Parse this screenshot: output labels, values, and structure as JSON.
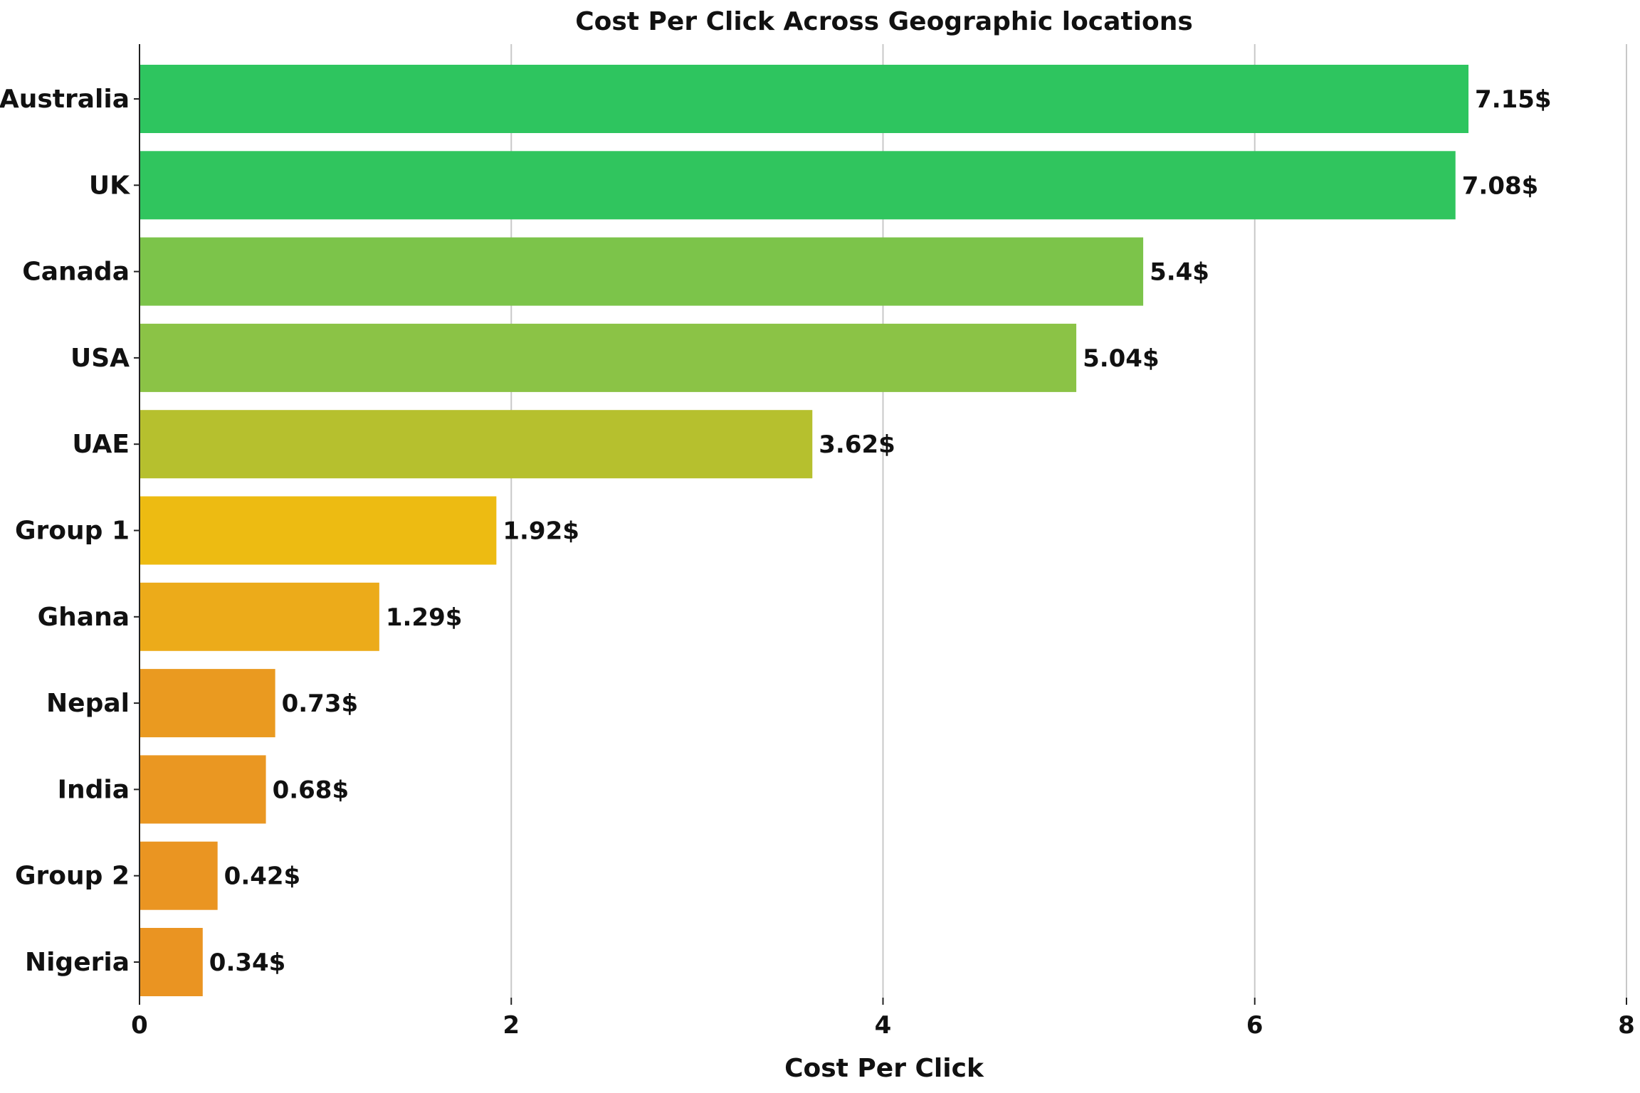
{
  "chart_data": {
    "type": "bar",
    "orientation": "horizontal",
    "title": "Cost Per Click Across Geographic locations",
    "xlabel": "Cost Per Click",
    "ylabel": "",
    "xlim": [
      0,
      8
    ],
    "xticks": [
      0,
      2,
      4,
      6,
      8
    ],
    "xtick_labels": [
      "0",
      "2",
      "4",
      "6",
      "8"
    ],
    "grid": "vertical",
    "value_suffix": "$",
    "categories": [
      "Australia",
      "UK",
      "Canada",
      "USA",
      "UAE",
      "Group 1",
      "Ghana",
      "Nepal",
      "India",
      "Group 2",
      "Nigeria"
    ],
    "values": [
      7.15,
      7.08,
      5.4,
      5.04,
      3.62,
      1.92,
      1.29,
      0.73,
      0.68,
      0.42,
      0.34
    ],
    "data_labels": [
      "7.15$",
      "7.08$",
      "5.4$",
      "5.04$",
      "3.62$",
      "1.92$",
      "1.29$",
      "0.73$",
      "0.68$",
      "0.42$",
      "0.34$"
    ],
    "colors": [
      "#2EC55F",
      "#30C55E",
      "#7CC44A",
      "#8BC346",
      "#B6C02E",
      "#EDBB12",
      "#ECAB1A",
      "#EA9A20",
      "#EA9722",
      "#EA9522",
      "#EA9422"
    ]
  }
}
